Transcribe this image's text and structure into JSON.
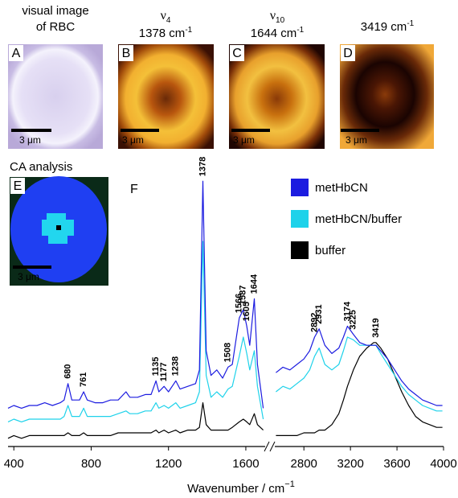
{
  "panels": [
    {
      "letter": "A",
      "title": [
        "visual image",
        "of RBC"
      ],
      "scale": "3 μm"
    },
    {
      "letter": "B",
      "mode": {
        "symbol": "ν",
        "index": "4"
      },
      "wavenumber": "1378 cm",
      "unit_exp": "-1",
      "scale": "3 μm"
    },
    {
      "letter": "C",
      "mode": {
        "symbol": "ν",
        "index": "10"
      },
      "wavenumber": "1644 cm",
      "unit_exp": "-1",
      "scale": "3 μm"
    },
    {
      "letter": "D",
      "wavenumber": "3419 cm",
      "unit_exp": "-1",
      "scale": "3 μm"
    },
    {
      "letter": "E",
      "title": [
        "CA analysis"
      ],
      "scale": "3 μm"
    }
  ],
  "figure": {
    "letter": "F",
    "xlabel": "Wavenumber / cm",
    "xlabel_exp": "−1"
  },
  "chart_data": [
    {
      "type": "line",
      "xlim": [
        370,
        1700
      ],
      "ylim": [
        0,
        100
      ],
      "xticks": [
        400,
        800,
        1200,
        1600
      ],
      "x": [
        360,
        400,
        440,
        480,
        520,
        560,
        600,
        640,
        660,
        680,
        700,
        740,
        761,
        780,
        820,
        860,
        900,
        940,
        980,
        1000,
        1040,
        1080,
        1110,
        1135,
        1150,
        1177,
        1200,
        1238,
        1260,
        1300,
        1340,
        1360,
        1378,
        1395,
        1420,
        1450,
        1480,
        1508,
        1530,
        1566,
        1587,
        1605,
        1620,
        1644,
        1660,
        1690
      ],
      "series": [
        {
          "name": "metHbCN",
          "color": "#1c1ce0",
          "values": [
            14,
            15,
            14,
            15,
            15,
            16,
            15,
            16,
            17,
            23,
            17,
            17,
            20,
            17,
            16,
            16,
            17,
            17,
            20,
            18,
            18,
            19,
            19,
            24,
            20,
            22,
            20,
            24,
            21,
            22,
            23,
            28,
            97,
            35,
            26,
            28,
            25,
            29,
            30,
            47,
            50,
            44,
            37,
            54,
            30,
            14
          ]
        },
        {
          "name": "metHbCN/buffer",
          "color": "#1ed2ea",
          "values": [
            9,
            10,
            9,
            10,
            10,
            10,
            10,
            10,
            11,
            15,
            11,
            11,
            14,
            11,
            11,
            11,
            11,
            12,
            13,
            12,
            12,
            13,
            13,
            16,
            14,
            15,
            14,
            16,
            14,
            15,
            16,
            20,
            75,
            26,
            18,
            20,
            18,
            21,
            22,
            33,
            40,
            34,
            28,
            35,
            22,
            10
          ]
        },
        {
          "name": "buffer",
          "color": "#000000",
          "values": [
            3,
            4,
            3,
            4,
            4,
            4,
            4,
            4,
            4,
            5,
            4,
            4,
            5,
            4,
            4,
            4,
            4,
            5,
            5,
            5,
            5,
            5,
            5,
            6,
            5,
            6,
            5,
            6,
            5,
            6,
            6,
            7,
            16,
            8,
            6,
            6,
            6,
            6,
            7,
            9,
            10,
            9,
            8,
            12,
            8,
            6
          ]
        }
      ],
      "peaks": [
        {
          "value": 680,
          "series": 0
        },
        {
          "value": 761,
          "series": 0
        },
        {
          "value": 1135,
          "series": 0
        },
        {
          "value": 1177,
          "series": 0
        },
        {
          "value": 1238,
          "series": 0
        },
        {
          "value": 1378,
          "series": 0
        },
        {
          "value": 1508,
          "series": 0
        },
        {
          "value": 1566,
          "series": 0
        },
        {
          "value": 1587,
          "series": 0
        },
        {
          "value": 1605,
          "series": 0
        },
        {
          "value": 1644,
          "series": 0
        }
      ]
    },
    {
      "type": "line",
      "xlim": [
        2550,
        4000
      ],
      "ylim": [
        0,
        100
      ],
      "xticks": [
        2800,
        3200,
        3600,
        4000
      ],
      "x": [
        2560,
        2620,
        2680,
        2740,
        2800,
        2850,
        2892,
        2931,
        2980,
        3040,
        3100,
        3140,
        3174,
        3225,
        3280,
        3340,
        3400,
        3419,
        3460,
        3520,
        3580,
        3640,
        3700,
        3760,
        3820,
        3880,
        3940,
        3990
      ],
      "series": [
        {
          "color": "#1c1ce0",
          "values": [
            27,
            29,
            28,
            30,
            32,
            35,
            40,
            43,
            37,
            34,
            36,
            40,
            44,
            41,
            38,
            37,
            37,
            37,
            35,
            32,
            28,
            24,
            21,
            19,
            17,
            16,
            15,
            15
          ]
        },
        {
          "color": "#1ed2ea",
          "values": [
            20,
            22,
            21,
            23,
            25,
            28,
            33,
            36,
            30,
            28,
            30,
            35,
            40,
            39,
            37,
            37,
            37,
            37,
            34,
            30,
            26,
            22,
            19,
            17,
            15,
            14,
            13,
            13
          ]
        },
        {
          "color": "#000000",
          "values": [
            4,
            4,
            4,
            4,
            5,
            5,
            5,
            6,
            6,
            8,
            12,
            17,
            22,
            28,
            33,
            36,
            38,
            38,
            36,
            32,
            26,
            20,
            15,
            11,
            9,
            8,
            7,
            7
          ]
        }
      ],
      "peaks": [
        {
          "value": 2892,
          "series": 0
        },
        {
          "value": 2931,
          "series": 0
        },
        {
          "value": 3174,
          "series": 0
        },
        {
          "value": 3225,
          "series": 0
        },
        {
          "value": 3419,
          "series": 2
        }
      ]
    }
  ]
}
